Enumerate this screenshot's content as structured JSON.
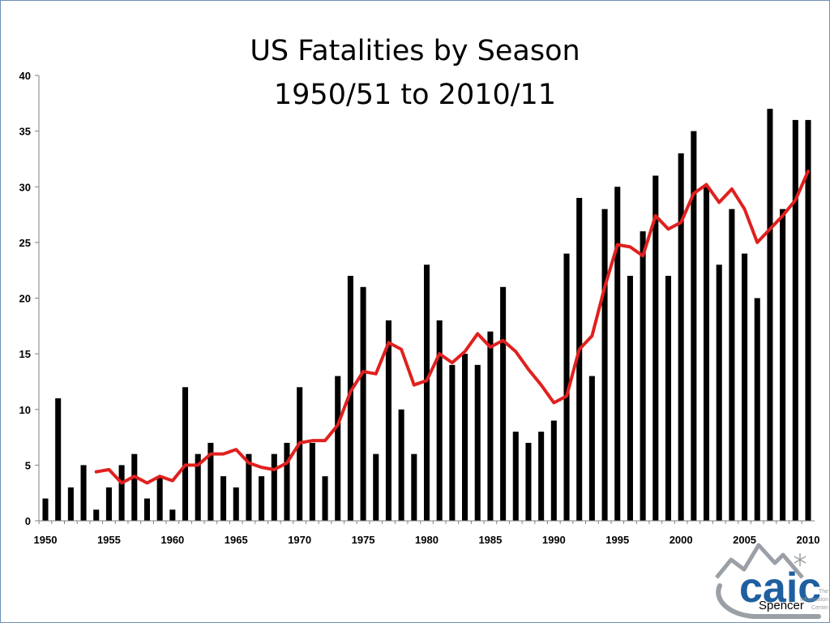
{
  "chart_data": {
    "type": "bar",
    "title_lines": [
      "US Fatalities by Season",
      "1950/51 to 2010/11"
    ],
    "xlabel": "",
    "ylabel": "",
    "xlim": [
      1950,
      2010
    ],
    "ylim": [
      0,
      40
    ],
    "y_ticks": [
      0,
      5,
      10,
      15,
      20,
      25,
      30,
      35,
      40
    ],
    "x_ticks": [
      1950,
      1955,
      1960,
      1965,
      1970,
      1975,
      1980,
      1985,
      1990,
      1995,
      2000,
      2005,
      2010
    ],
    "grid": false,
    "legend": "none",
    "series": [
      {
        "type": "bar",
        "color": "#000000",
        "x": [
          1950,
          1951,
          1952,
          1953,
          1954,
          1955,
          1956,
          1957,
          1958,
          1959,
          1960,
          1961,
          1962,
          1963,
          1964,
          1965,
          1966,
          1967,
          1968,
          1969,
          1970,
          1971,
          1972,
          1973,
          1974,
          1975,
          1976,
          1977,
          1978,
          1979,
          1980,
          1981,
          1982,
          1983,
          1984,
          1985,
          1986,
          1987,
          1988,
          1989,
          1990,
          1991,
          1992,
          1993,
          1994,
          1995,
          1996,
          1997,
          1998,
          1999,
          2000,
          2001,
          2002,
          2003,
          2004,
          2005,
          2006,
          2007,
          2008,
          2009,
          2010
        ],
        "values": [
          2,
          11,
          3,
          5,
          1,
          3,
          5,
          6,
          2,
          4,
          1,
          12,
          6,
          7,
          4,
          3,
          6,
          4,
          6,
          7,
          12,
          7,
          4,
          13,
          22,
          21,
          6,
          18,
          10,
          6,
          23,
          18,
          14,
          15,
          14,
          17,
          21,
          8,
          7,
          8,
          9,
          24,
          29,
          13,
          28,
          30,
          22,
          26,
          31,
          22,
          33,
          35,
          30,
          23,
          28,
          24,
          20,
          37,
          28,
          36,
          36
        ]
      },
      {
        "type": "line",
        "color": "#e0201e",
        "x": [
          1954,
          1955,
          1956,
          1957,
          1958,
          1959,
          1960,
          1961,
          1962,
          1963,
          1964,
          1965,
          1966,
          1967,
          1968,
          1969,
          1970,
          1971,
          1972,
          1973,
          1974,
          1975,
          1976,
          1977,
          1978,
          1979,
          1980,
          1981,
          1982,
          1983,
          1984,
          1985,
          1986,
          1987,
          1988,
          1989,
          1990,
          1991,
          1992,
          1993,
          1994,
          1995,
          1996,
          1997,
          1998,
          1999,
          2000,
          2001,
          2002,
          2003,
          2004,
          2005,
          2006,
          2007,
          2008,
          2009,
          2010
        ],
        "values": [
          4.4,
          4.6,
          3.4,
          4.0,
          3.4,
          4.0,
          3.6,
          5.0,
          5.0,
          6.0,
          6.0,
          6.4,
          5.2,
          4.8,
          4.6,
          5.2,
          7.0,
          7.2,
          7.2,
          8.6,
          11.6,
          13.4,
          13.2,
          16.0,
          15.4,
          12.2,
          12.6,
          15.0,
          14.2,
          15.2,
          16.8,
          15.6,
          16.2,
          15.2,
          13.6,
          12.2,
          10.6,
          11.2,
          15.4,
          16.6,
          21.0,
          24.8,
          24.6,
          23.8,
          27.4,
          26.2,
          26.8,
          29.4,
          30.2,
          28.6,
          29.8,
          28.0,
          25.0,
          26.2,
          27.4,
          28.8,
          31.4
        ]
      }
    ]
  },
  "logo": {
    "name": "mountain-snowflake-icon",
    "wordmark": "caic",
    "tagline_lines": [
      "The",
      "Information",
      "Center"
    ],
    "credit": "Spencer",
    "colors": {
      "primary": "#1f5fa0",
      "mountain": "#9aa0a6"
    }
  }
}
